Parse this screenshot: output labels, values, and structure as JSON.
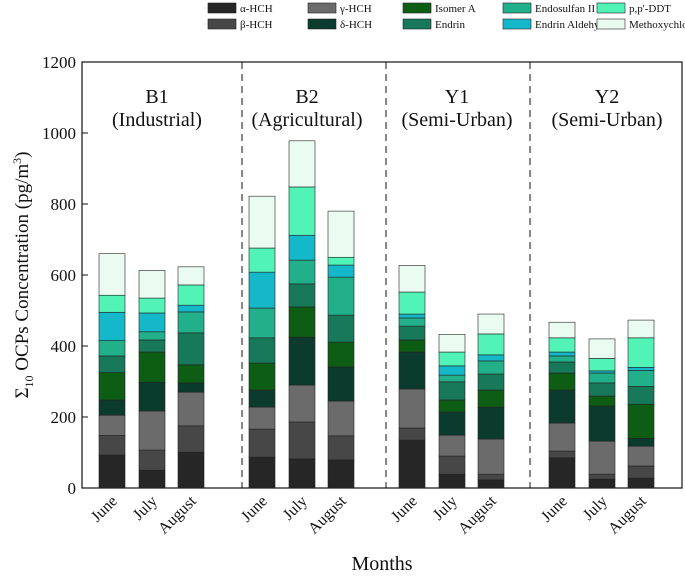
{
  "chart_data": {
    "type": "stacked_bar",
    "x_label": "Months",
    "y_label": {
      "prefix": "Σ",
      "sub": "10",
      "main": " OCPs Concentration (pg/m",
      "sup": "3",
      "end": ")"
    },
    "groups": [
      {
        "name": "B1",
        "subtitle": "(Industrial)"
      },
      {
        "name": "B2",
        "subtitle": "(Agricultural)"
      },
      {
        "name": "Y1",
        "subtitle": "(Semi-Urban)"
      },
      {
        "name": "Y2",
        "subtitle": "(Semi-Urban)"
      }
    ],
    "categories": [
      "June",
      "July",
      "August",
      "June",
      "July",
      "August",
      "June",
      "July",
      "August",
      "June",
      "July",
      "August"
    ],
    "ylim": [
      0,
      1200
    ],
    "yticks": [
      0,
      200,
      400,
      600,
      800,
      1000,
      1200
    ],
    "series": [
      {
        "name": "α-HCH",
        "color": "#262626",
        "values": [
          93,
          50,
          101,
          87,
          82,
          79,
          135,
          39,
          23,
          85,
          25,
          28
        ]
      },
      {
        "name": "β-HCH",
        "color": "#474747",
        "values": [
          55,
          57,
          74,
          79,
          104,
          68,
          34,
          51,
          16,
          19,
          14,
          34
        ]
      },
      {
        "name": "γ-HCH",
        "color": "#6b6b6b",
        "values": [
          57,
          110,
          95,
          62,
          104,
          98,
          110,
          59,
          99,
          79,
          93,
          56
        ]
      },
      {
        "name": "δ-HCH",
        "color": "#0b3b2c",
        "values": [
          43,
          81,
          26,
          48,
          135,
          96,
          104,
          65,
          90,
          93,
          99,
          22
        ]
      },
      {
        "name": "Isomer A",
        "color": "#0d5e14",
        "values": [
          77,
          85,
          51,
          76,
          85,
          70,
          34,
          34,
          48,
          48,
          28,
          96
        ]
      },
      {
        "name": "Endrin",
        "color": "#17785a",
        "values": [
          47,
          34,
          90,
          71,
          65,
          76,
          39,
          51,
          45,
          31,
          37,
          50
        ]
      },
      {
        "name": "Endosulfan II",
        "color": "#22b08a",
        "values": [
          43,
          23,
          59,
          84,
          67,
          107,
          23,
          19,
          37,
          17,
          28,
          45
        ]
      },
      {
        "name": "Endrin Aldehyde",
        "color": "#14b8c8",
        "values": [
          80,
          53,
          19,
          101,
          70,
          34,
          11,
          26,
          17,
          11,
          6,
          9
        ]
      },
      {
        "name": "p,p'-DDT",
        "color": "#52f3b6",
        "values": [
          48,
          42,
          57,
          68,
          136,
          22,
          62,
          39,
          59,
          40,
          35,
          83
        ]
      },
      {
        "name": "Methoxychlor",
        "color": "#eafcf1",
        "values": [
          117,
          78,
          51,
          146,
          130,
          130,
          75,
          50,
          56,
          44,
          55,
          50
        ]
      }
    ]
  }
}
